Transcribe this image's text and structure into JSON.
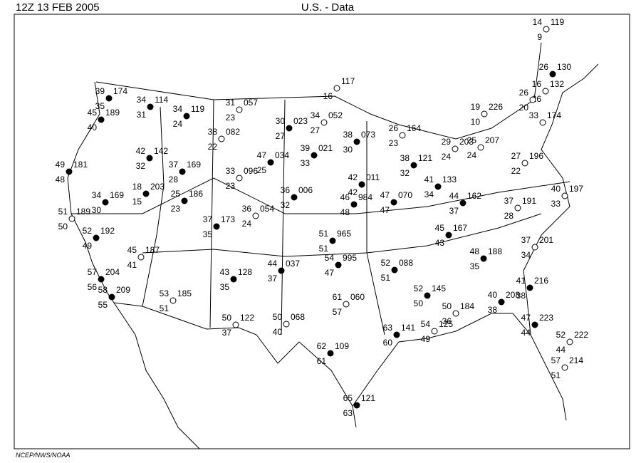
{
  "header": {
    "left": "12Z   13 FEB  2005",
    "title": "U.S. -  Data"
  },
  "footer": "NCEP/NWS/NOAA",
  "stations": [
    {
      "t": "39",
      "p": "174",
      "td": "35"
    },
    {
      "t": "45",
      "p": "189",
      "td": "40"
    },
    {
      "t": "34",
      "p": "114",
      "td": "31"
    },
    {
      "t": "49",
      "p": "181",
      "td": "48"
    },
    {
      "t": "42",
      "p": "142",
      "td": "32"
    },
    {
      "t": "34",
      "p": "169",
      "td": "30"
    },
    {
      "t": "18",
      "p": "203",
      "td": "15"
    },
    {
      "t": "51",
      "p": "189",
      "td": "50"
    },
    {
      "t": "52",
      "p": "192",
      "td": "49"
    },
    {
      "t": "45",
      "p": "187",
      "td": "41"
    },
    {
      "t": "57",
      "p": "204",
      "td": "56"
    },
    {
      "t": "58",
      "p": "209",
      "td": "55"
    },
    {
      "t": "53",
      "p": "185",
      "td": "51"
    },
    {
      "t": "34",
      "p": "119",
      "td": "24"
    },
    {
      "t": "38",
      "p": "082",
      "td": "22"
    },
    {
      "t": "31",
      "p": "057",
      "td": "23"
    },
    {
      "t": "37",
      "p": "169",
      "td": "28"
    },
    {
      "t": "25",
      "p": "186",
      "td": "23"
    },
    {
      "t": "33",
      "p": "096",
      "td": "23"
    },
    {
      "t": "37",
      "p": "173",
      "td": "35"
    },
    {
      "t": "36",
      "p": "054",
      "td": "24"
    },
    {
      "t": "43",
      "p": "128",
      "td": "35"
    },
    {
      "t": "50",
      "p": "122",
      "td": "37"
    },
    {
      "t": "30",
      "p": "023",
      "td": "27"
    },
    {
      "t": "34",
      "p": "052",
      "td": "27"
    },
    {
      "p": "117",
      "td": "16"
    },
    {
      "t": "38",
      "p": "073",
      "td": "30"
    },
    {
      "t": "47",
      "p": "034",
      "td": "25"
    },
    {
      "t": "39",
      "p": "021",
      "td": "33"
    },
    {
      "t": "36",
      "p": "006",
      "td": "32"
    },
    {
      "t": "42",
      "p": "011",
      "td": "42"
    },
    {
      "t": "46",
      "p": "984",
      "td": "48"
    },
    {
      "t": "51",
      "p": "965",
      "td": "51"
    },
    {
      "t": "44",
      "p": "037",
      "td": "37"
    },
    {
      "t": "54",
      "p": "995",
      "td": "47"
    },
    {
      "t": "61",
      "p": "060",
      "td": "57"
    },
    {
      "t": "50",
      "p": "068",
      "td": "40"
    },
    {
      "t": "62",
      "p": "109",
      "td": "61"
    },
    {
      "t": "65",
      "p": "121",
      "td": "63"
    },
    {
      "t": "26",
      "p": "164",
      "td": "23"
    },
    {
      "t": "47",
      "p": "070",
      "td": "47"
    },
    {
      "t": "38",
      "p": "121",
      "td": "32"
    },
    {
      "t": "52",
      "p": "088",
      "td": "51"
    },
    {
      "t": "63",
      "p": "141",
      "td": "60"
    },
    {
      "t": "52",
      "p": "145",
      "td": "50"
    },
    {
      "t": "54",
      "p": "125",
      "td": "49"
    },
    {
      "t": "50",
      "p": "184",
      "td": "36"
    },
    {
      "t": "29",
      "p": "203",
      "td": "24"
    },
    {
      "t": "41",
      "p": "133",
      "td": "34"
    },
    {
      "t": "44",
      "p": "162",
      "td": "37"
    },
    {
      "t": "45",
      "p": "167",
      "td": "43"
    },
    {
      "t": "48",
      "p": "188",
      "td": "35"
    },
    {
      "t": "40",
      "p": "208",
      "td": "38"
    },
    {
      "t": "37",
      "p": "191",
      "td": "28"
    },
    {
      "t": "37",
      "p": "201",
      "td": "34"
    },
    {
      "t": "41",
      "p": "216",
      "td": "38"
    },
    {
      "t": "47",
      "p": "223",
      "td": "44"
    },
    {
      "t": "25",
      "p": "207",
      "td": "24"
    },
    {
      "t": "19",
      "p": "226",
      "td": "10"
    },
    {
      "t": "27",
      "p": "196",
      "td": "22"
    },
    {
      "t": "40",
      "p": "197",
      "td": "33"
    },
    {
      "t": "14",
      "p": "119",
      "td": "9"
    },
    {
      "t": "26",
      "p": "130"
    },
    {
      "t": "16",
      "p": "132",
      "td": "26"
    },
    {
      "t": "26",
      "td": "20"
    },
    {
      "t": "33",
      "p": "174"
    },
    {
      "t": "57",
      "p": "214",
      "td": "51"
    },
    {
      "t": "52",
      "p": "222",
      "td": "44"
    }
  ]
}
